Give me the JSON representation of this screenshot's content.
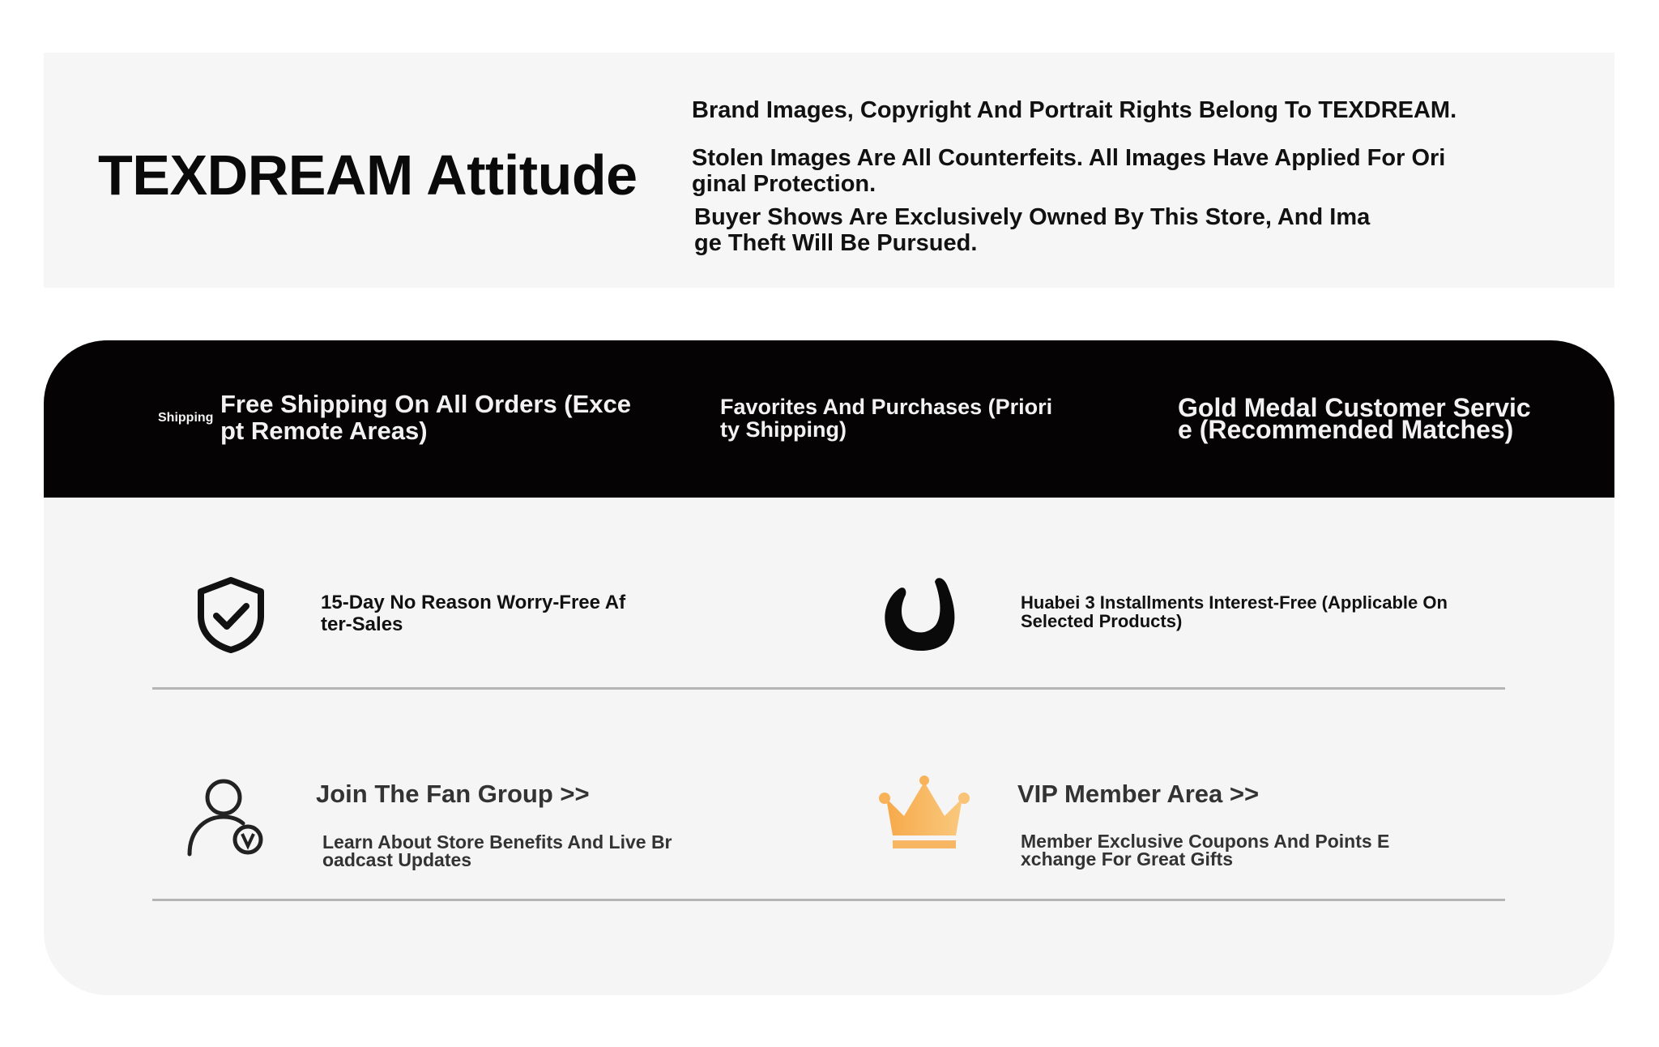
{
  "header": {
    "title": "TEXDREAM Attitude",
    "notices": [
      "Brand Images, Copyright And Portrait Rights Belong To TEXDREAM.",
      "Stolen Images Are All Counterfeits. All Images Have Applied For Ori",
      "ginal Protection.",
      "Buyer Shows Are Exclusively Owned By This Store, And Ima",
      "ge Theft Will Be Pursued."
    ]
  },
  "band": {
    "shipping_label": "Shipping",
    "items": [
      {
        "line1": "Free Shipping On All Orders (Exce",
        "line2": "pt Remote Areas)"
      },
      {
        "line1": "Favorites And Purchases (Priori",
        "line2": "ty Shipping)"
      },
      {
        "line1": "Gold Medal Customer Servic",
        "line2": "e (Recommended Matches)"
      }
    ]
  },
  "features": [
    {
      "icon": "shield-check-icon",
      "line1": "15-Day No Reason Worry-Free Af",
      "line2": "ter-Sales"
    },
    {
      "icon": "huabei-icon",
      "line1": "Huabei 3 Installments Interest-Free (Applicable On",
      "line2": "Selected Products)"
    }
  ],
  "links": [
    {
      "icon": "user-verified-icon",
      "title": "Join The Fan Group >>",
      "line1": "Learn About Store Benefits And Live Br",
      "line2": "oadcast Updates"
    },
    {
      "icon": "crown-icon",
      "title": "VIP Member Area >>",
      "line1": "Member Exclusive Coupons And Points E",
      "line2": "xchange For Great Gifts"
    }
  ],
  "colors": {
    "band": "#050304",
    "panel": "#f5f5f5",
    "crown": "#f5b04f",
    "divider": "#b5b5b5"
  }
}
